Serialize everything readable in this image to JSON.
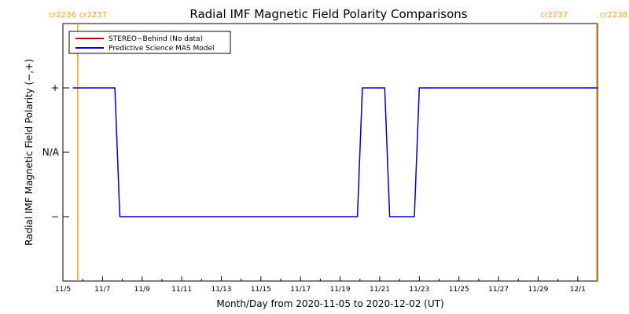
{
  "chart_data": {
    "type": "line",
    "title": "Radial IMF Magnetic Field Polarity Comparisons",
    "xlabel": "Month/Day from 2020-11-05 to 2020-12-02 (UT)",
    "ylabel": "Radial IMF Magnetic Field Polarity (−,+)",
    "x_start": "2020-11-05",
    "x_end": "2020-12-02",
    "xlim": [
      "2020-11-05",
      "2020-12-02"
    ],
    "ylim": [
      -2,
      2
    ],
    "x_ticks": [
      {
        "label": "11/5",
        "date": "2020-11-05"
      },
      {
        "label": "11/7",
        "date": "2020-11-07"
      },
      {
        "label": "11/9",
        "date": "2020-11-09"
      },
      {
        "label": "11/11",
        "date": "2020-11-11"
      },
      {
        "label": "11/13",
        "date": "2020-11-13"
      },
      {
        "label": "11/15",
        "date": "2020-11-15"
      },
      {
        "label": "11/17",
        "date": "2020-11-17"
      },
      {
        "label": "11/19",
        "date": "2020-11-19"
      },
      {
        "label": "11/21",
        "date": "2020-11-21"
      },
      {
        "label": "11/23",
        "date": "2020-11-23"
      },
      {
        "label": "11/25",
        "date": "2020-11-25"
      },
      {
        "label": "11/27",
        "date": "2020-11-27"
      },
      {
        "label": "11/29",
        "date": "2020-11-29"
      },
      {
        "label": "12/1",
        "date": "2020-12-01"
      }
    ],
    "y_ticks": [
      {
        "label": "+",
        "value": 1
      },
      {
        "label": "N/A",
        "value": 0
      },
      {
        "label": "−",
        "value": -1
      }
    ],
    "carrington_markers": [
      {
        "left_label": "cr2236",
        "right_label": "cr2237",
        "date": "2020-11-05T18:00"
      },
      {
        "left_label": "cr2237",
        "right_label": "cr2238",
        "date": "2020-12-02T00:00"
      }
    ],
    "legend": {
      "position": "top-left",
      "entries": [
        {
          "name": "STEREO−Behind (No data)",
          "color": "#c00000"
        },
        {
          "name": "Predictive Science MAS Model",
          "color": "#0000c8"
        }
      ]
    },
    "series": [
      {
        "name": "Predictive Science MAS Model",
        "color": "#0000c8",
        "points": [
          {
            "x": "2020-11-05T12:00",
            "y": 1
          },
          {
            "x": "2020-11-07T15:00",
            "y": 1
          },
          {
            "x": "2020-11-07T21:00",
            "y": -1
          },
          {
            "x": "2020-11-19T21:00",
            "y": -1
          },
          {
            "x": "2020-11-20T03:00",
            "y": 1
          },
          {
            "x": "2020-11-21T06:00",
            "y": 1
          },
          {
            "x": "2020-11-21T12:00",
            "y": -1
          },
          {
            "x": "2020-11-22T18:00",
            "y": -1
          },
          {
            "x": "2020-11-23T00:00",
            "y": 1
          },
          {
            "x": "2020-12-02T00:00",
            "y": 1
          }
        ]
      }
    ],
    "colors": {
      "axis": "#000000",
      "carrington_line": "#f0a020",
      "carrington_text": "#f0a020"
    }
  }
}
